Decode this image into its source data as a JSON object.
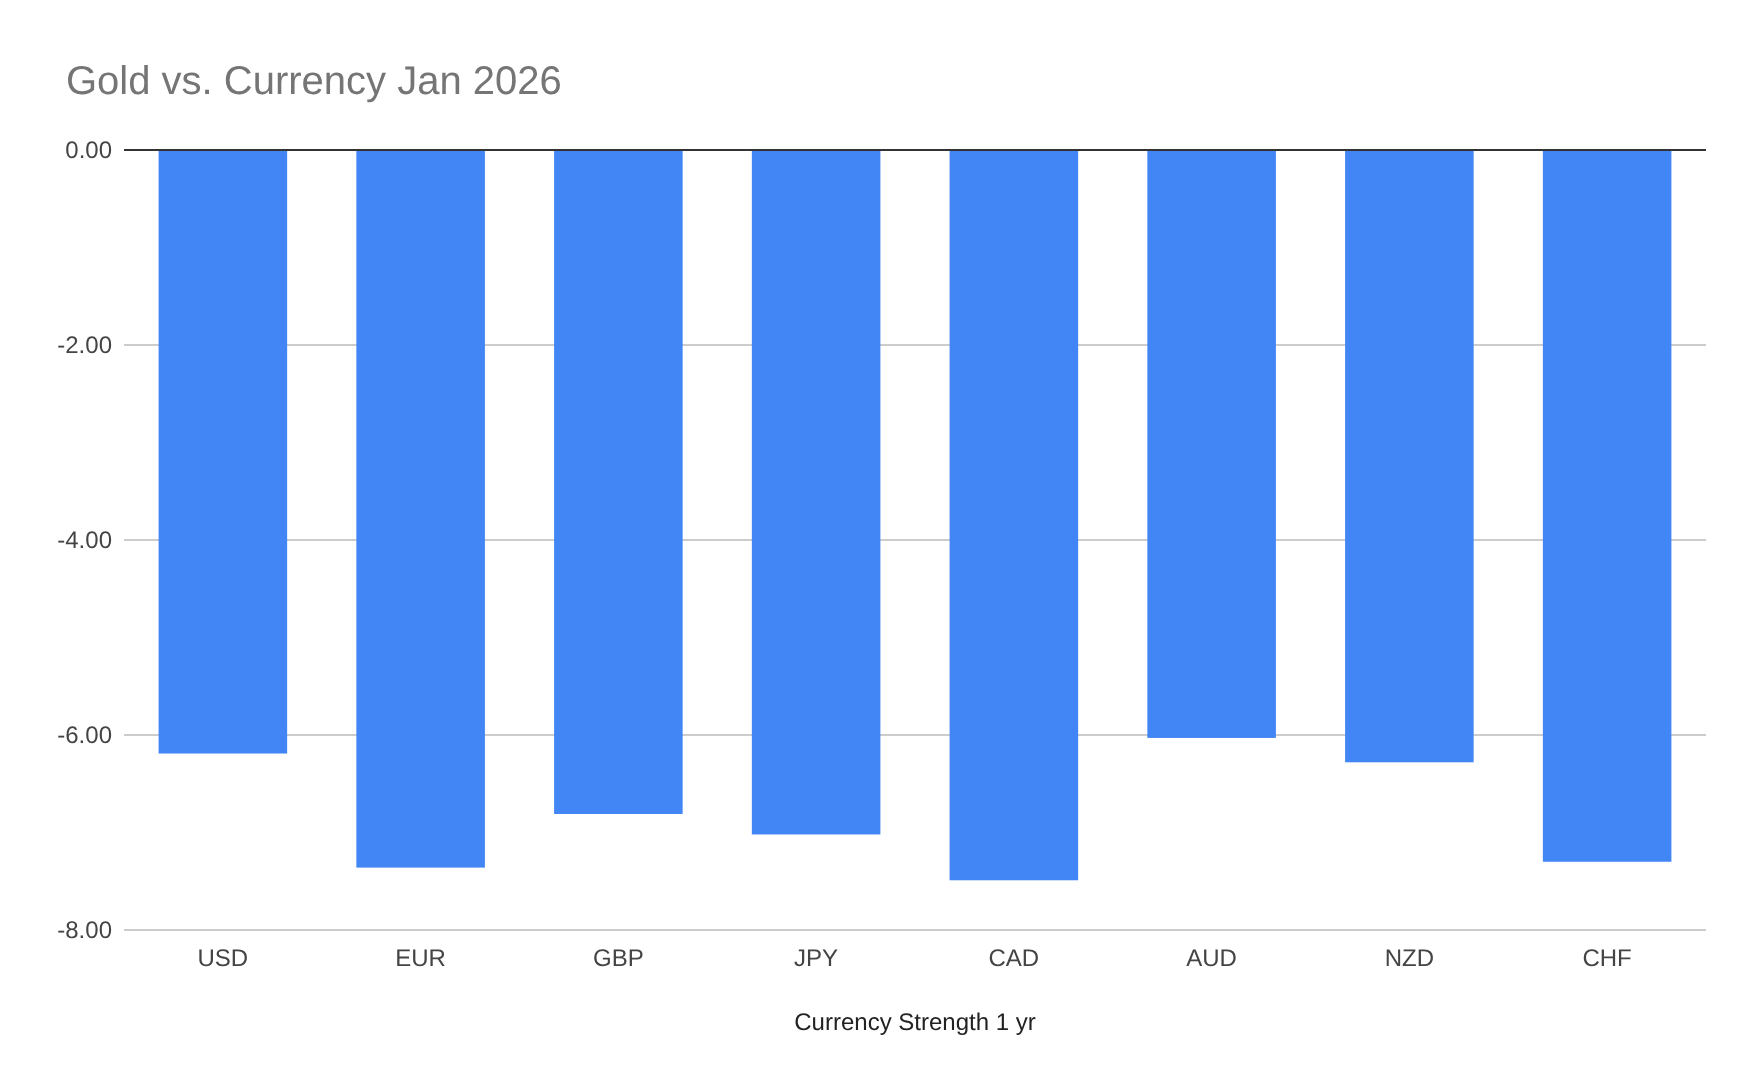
{
  "chart_data": {
    "type": "bar",
    "title": "Gold vs. Currency Jan 2026",
    "xlabel": "Currency Strength 1 yr",
    "categories": [
      "USD",
      "EUR",
      "GBP",
      "JPY",
      "CAD",
      "AUD",
      "NZD",
      "CHF"
    ],
    "values": [
      -6.19,
      -7.36,
      -6.81,
      -7.02,
      -7.49,
      -6.03,
      -6.28,
      -7.3
    ],
    "color": "#4285f4",
    "ylim": [
      -8,
      0
    ],
    "yticks": [
      {
        "value": 0,
        "label": "0.00"
      },
      {
        "value": -2,
        "label": "-2.00"
      },
      {
        "value": -4,
        "label": "-4.00"
      },
      {
        "value": -6,
        "label": "-6.00"
      },
      {
        "value": -8,
        "label": "-8.00"
      }
    ],
    "grid": "y"
  }
}
